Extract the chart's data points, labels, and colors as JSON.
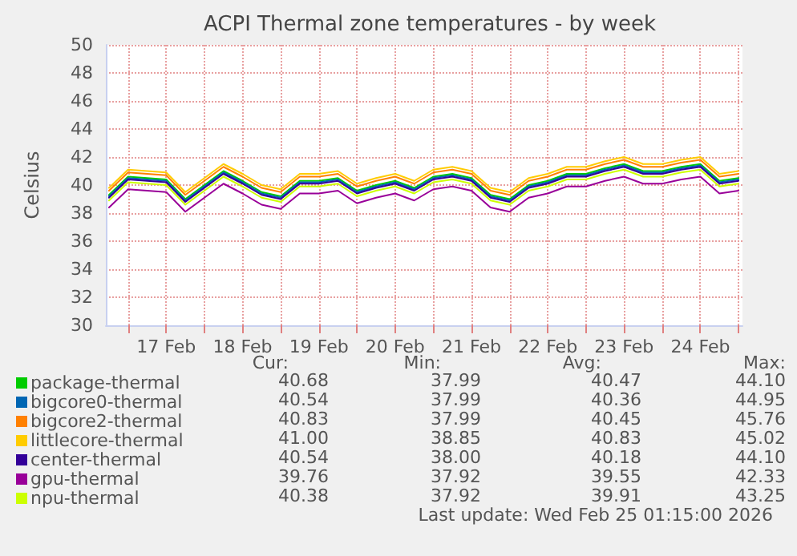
{
  "chart_data": {
    "type": "line",
    "title": "ACPI Thermal zone temperatures - by week",
    "ylabel": "Celsius",
    "x": [
      "2026-02-16T18:00",
      "2026-02-17T00:00",
      "2026-02-17T06:00",
      "2026-02-17T12:00",
      "2026-02-17T18:00",
      "2026-02-18T00:00",
      "2026-02-18T06:00",
      "2026-02-18T12:00",
      "2026-02-18T18:00",
      "2026-02-19T00:00",
      "2026-02-19T06:00",
      "2026-02-19T12:00",
      "2026-02-19T18:00",
      "2026-02-20T00:00",
      "2026-02-20T06:00",
      "2026-02-20T12:00",
      "2026-02-20T18:00",
      "2026-02-21T00:00",
      "2026-02-21T06:00",
      "2026-02-21T12:00",
      "2026-02-21T18:00",
      "2026-02-22T00:00",
      "2026-02-22T06:00",
      "2026-02-22T12:00",
      "2026-02-22T18:00",
      "2026-02-23T00:00",
      "2026-02-23T06:00",
      "2026-02-23T12:00",
      "2026-02-23T18:00",
      "2026-02-24T00:00",
      "2026-02-24T06:00",
      "2026-02-24T12:00",
      "2026-02-24T18:00",
      "2026-02-25T00:00"
    ],
    "series": [
      {
        "name": "package-thermal",
        "color": "#00cc00",
        "values": [
          39.3,
          40.6,
          40.5,
          40.4,
          39.0,
          40.0,
          41.0,
          40.3,
          39.5,
          39.2,
          40.3,
          40.3,
          40.5,
          39.6,
          40.0,
          40.3,
          39.8,
          40.6,
          40.8,
          40.5,
          39.3,
          39.0,
          40.0,
          40.3,
          40.8,
          40.8,
          41.2,
          41.5,
          41.0,
          41.0,
          41.3,
          41.5,
          40.3,
          40.5
        ]
      },
      {
        "name": "bigcore0-thermal",
        "color": "#0066b3",
        "values": [
          39.2,
          40.5,
          40.4,
          40.3,
          38.9,
          39.9,
          40.9,
          40.2,
          39.4,
          39.1,
          40.2,
          40.2,
          40.4,
          39.5,
          39.9,
          40.2,
          39.7,
          40.5,
          40.7,
          40.4,
          39.2,
          38.9,
          39.9,
          40.2,
          40.7,
          40.7,
          41.1,
          41.4,
          40.9,
          40.9,
          41.2,
          41.4,
          40.2,
          40.4
        ]
      },
      {
        "name": "bigcore2-thermal",
        "color": "#ff8000",
        "values": [
          39.6,
          40.9,
          40.8,
          40.7,
          39.3,
          40.3,
          41.3,
          40.6,
          39.8,
          39.5,
          40.6,
          40.6,
          40.8,
          39.9,
          40.3,
          40.6,
          40.1,
          40.9,
          41.1,
          40.8,
          39.6,
          39.3,
          40.3,
          40.6,
          41.1,
          41.1,
          41.5,
          41.8,
          41.3,
          41.3,
          41.6,
          41.8,
          40.6,
          40.8
        ]
      },
      {
        "name": "littlecore-thermal",
        "color": "#ffcc00",
        "values": [
          39.8,
          41.1,
          41.0,
          40.9,
          39.5,
          40.5,
          41.5,
          40.8,
          40.0,
          39.7,
          40.8,
          40.8,
          41.0,
          40.1,
          40.5,
          40.8,
          40.3,
          41.1,
          41.3,
          41.0,
          39.8,
          39.5,
          40.5,
          40.8,
          41.3,
          41.3,
          41.7,
          42.0,
          41.5,
          41.5,
          41.8,
          42.0,
          40.8,
          41.0
        ]
      },
      {
        "name": "center-thermal",
        "color": "#330099",
        "values": [
          39.1,
          40.4,
          40.3,
          40.2,
          38.8,
          39.8,
          40.8,
          40.1,
          39.3,
          39.0,
          40.1,
          40.1,
          40.3,
          39.4,
          39.8,
          40.1,
          39.6,
          40.4,
          40.6,
          40.3,
          39.1,
          38.8,
          39.8,
          40.1,
          40.6,
          40.6,
          41.0,
          41.3,
          40.8,
          40.8,
          41.1,
          41.3,
          40.1,
          40.3
        ]
      },
      {
        "name": "gpu-thermal",
        "color": "#990099",
        "values": [
          38.4,
          39.7,
          39.6,
          39.5,
          38.1,
          39.1,
          40.1,
          39.4,
          38.6,
          38.3,
          39.4,
          39.4,
          39.6,
          38.7,
          39.1,
          39.4,
          38.9,
          39.7,
          39.9,
          39.6,
          38.4,
          38.1,
          39.1,
          39.4,
          39.9,
          39.9,
          40.3,
          40.6,
          40.1,
          40.1,
          40.4,
          40.6,
          39.4,
          39.6
        ]
      },
      {
        "name": "npu-thermal",
        "color": "#ccff00",
        "values": [
          38.9,
          40.2,
          40.1,
          40.0,
          38.6,
          39.6,
          40.6,
          39.9,
          39.1,
          38.8,
          39.9,
          39.9,
          40.1,
          39.2,
          39.6,
          39.9,
          39.4,
          40.2,
          40.4,
          40.1,
          38.9,
          38.6,
          39.6,
          39.9,
          40.4,
          40.4,
          40.8,
          41.1,
          40.6,
          40.6,
          40.9,
          41.1,
          39.9,
          40.1
        ]
      }
    ],
    "xlim": [
      "2026-02-16T17:00",
      "2026-02-25T01:15"
    ],
    "xticks": [
      {
        "value": "2026-02-17T00:00",
        "label": null
      },
      {
        "value": "2026-02-17T12:00",
        "label": "17 Feb"
      },
      {
        "value": "2026-02-18T00:00",
        "label": null
      },
      {
        "value": "2026-02-18T12:00",
        "label": "18 Feb"
      },
      {
        "value": "2026-02-19T00:00",
        "label": null
      },
      {
        "value": "2026-02-19T12:00",
        "label": "19 Feb"
      },
      {
        "value": "2026-02-20T00:00",
        "label": null
      },
      {
        "value": "2026-02-20T12:00",
        "label": "20 Feb"
      },
      {
        "value": "2026-02-21T00:00",
        "label": null
      },
      {
        "value": "2026-02-21T12:00",
        "label": "21 Feb"
      },
      {
        "value": "2026-02-22T00:00",
        "label": null
      },
      {
        "value": "2026-02-22T12:00",
        "label": "22 Feb"
      },
      {
        "value": "2026-02-23T00:00",
        "label": null
      },
      {
        "value": "2026-02-23T12:00",
        "label": "23 Feb"
      },
      {
        "value": "2026-02-24T00:00",
        "label": null
      },
      {
        "value": "2026-02-24T12:00",
        "label": "24 Feb"
      },
      {
        "value": "2026-02-25T00:00",
        "label": null
      }
    ],
    "ylim": [
      30,
      50
    ],
    "yticks": [
      30,
      32,
      34,
      36,
      38,
      40,
      42,
      44,
      46,
      48,
      50
    ],
    "grid": true,
    "legend": "bottom left",
    "marker": "none",
    "line_style": "solid",
    "annotations": [
      "Cur:",
      "Min:",
      "Avg:",
      "Max:",
      "40.68",
      "37.99",
      "40.47",
      "44.10",
      "40.54",
      "37.99",
      "40.36",
      "44.95",
      "40.83",
      "37.99",
      "40.45",
      "45.76",
      "41.00",
      "38.85",
      "40.83",
      "45.02",
      "40.54",
      "38.00",
      "40.18",
      "44.10",
      "39.76",
      "37.92",
      "39.55",
      "42.33",
      "40.38",
      "37.92",
      "39.91",
      "43.25",
      "Last update: Wed Feb 25 01:15:00 2026"
    ]
  }
}
